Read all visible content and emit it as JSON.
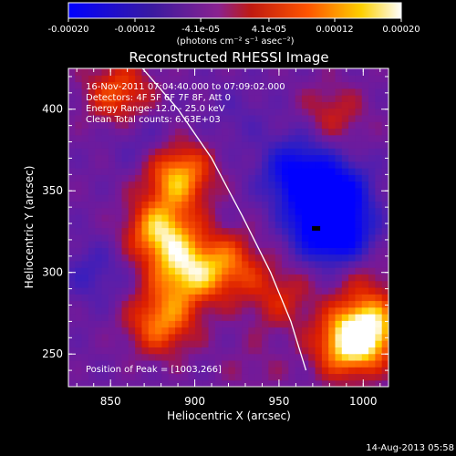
{
  "chart_data": {
    "type": "heatmap",
    "title": "Reconstructed RHESSI Image",
    "xlabel": "Heliocentric X (arcsec)",
    "ylabel": "Heliocentric Y (arcsec)",
    "xlim": [
      825,
      1015
    ],
    "ylim": [
      230,
      425
    ],
    "x_ticks": [
      "850",
      "900",
      "950",
      "1000"
    ],
    "y_ticks": [
      "250",
      "300",
      "350",
      "400"
    ],
    "colorbar": {
      "range": [
        -0.0002,
        0.0002
      ],
      "tick_labels": [
        "-0.00020",
        "-0.00012",
        "-4.1e-05",
        "4.1e-05",
        "0.00012",
        "0.00020"
      ],
      "unit_label": "(photons cm⁻² s⁻¹ asec⁻²)",
      "colormap": "blue-purple-red-yellow-white"
    },
    "info_lines": [
      "16-Nov-2011 07:04:40.000 to 07:09:02.000",
      "Detectors: 4F 5F 6F 7F 8F, Att 0",
      "Energy Range: 12.0 - 25.0 keV",
      "Clean     Total counts: 6.63E+03"
    ],
    "peak_label": "Position of Peak = [1003,266]",
    "peak_position": [
      1003,
      266
    ],
    "limb_curve": [
      [
        869,
        425
      ],
      [
        890,
        400
      ],
      [
        910,
        370
      ],
      [
        928,
        335
      ],
      [
        945,
        300
      ],
      [
        957,
        270
      ],
      [
        966,
        240
      ]
    ],
    "features": [
      {
        "x": 890,
        "y": 360,
        "value": 0.00018
      },
      {
        "x": 880,
        "y": 325,
        "value": 0.00019
      },
      {
        "x": 895,
        "y": 300,
        "value": 0.00017
      },
      {
        "x": 920,
        "y": 305,
        "value": 0.00012
      },
      {
        "x": 880,
        "y": 270,
        "value": 0.00015
      },
      {
        "x": 1003,
        "y": 266,
        "value": 0.0002
      },
      {
        "x": 990,
        "y": 255,
        "value": 0.00016
      },
      {
        "x": 855,
        "y": 410,
        "value": 0.00012
      },
      {
        "x": 980,
        "y": 395,
        "value": 9e-05
      },
      {
        "x": 1000,
        "y": 300,
        "value": 6e-05
      },
      {
        "x": 950,
        "y": 285,
        "value": 8e-05
      },
      {
        "x": 935,
        "y": 240,
        "value": 3e-05
      },
      {
        "x": 960,
        "y": 360,
        "value": -0.00016
      },
      {
        "x": 975,
        "y": 330,
        "value": -0.00018
      },
      {
        "x": 985,
        "y": 350,
        "value": -0.00015
      },
      {
        "x": 990,
        "y": 320,
        "value": -0.00012
      },
      {
        "x": 870,
        "y": 380,
        "value": -5e-05
      },
      {
        "x": 840,
        "y": 300,
        "value": -6e-05
      },
      {
        "x": 970,
        "y": 385,
        "value": -4e-05
      },
      {
        "x": 925,
        "y": 395,
        "value": -3e-05
      }
    ]
  },
  "footer": {
    "date": "14-Aug-2013 05:58"
  }
}
